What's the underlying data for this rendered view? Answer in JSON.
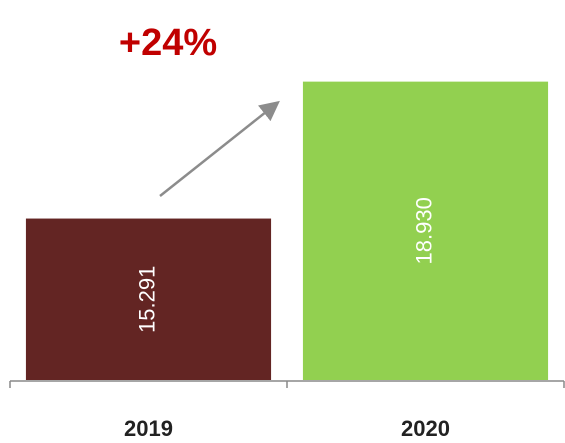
{
  "chart_data": {
    "type": "bar",
    "annotation": "+24%",
    "categories": [
      "2019",
      "2020"
    ],
    "values": [
      15291,
      18930
    ],
    "value_labels": [
      "15.291",
      "18.930"
    ],
    "colors": [
      "#632523",
      "#92d050"
    ],
    "ylim": [
      11000,
      19000
    ]
  }
}
